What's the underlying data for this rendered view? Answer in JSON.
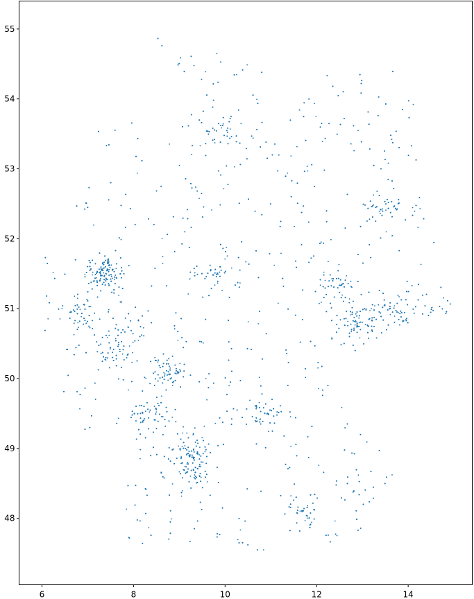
{
  "chart_data": {
    "type": "scatter",
    "title": "",
    "xlabel": "",
    "ylabel": "",
    "xlim": [
      5.5,
      15.4
    ],
    "ylim": [
      47.05,
      55.4
    ],
    "x_ticks": [
      "6",
      "8",
      "10",
      "12",
      "14"
    ],
    "y_ticks": [
      "48",
      "49",
      "50",
      "51",
      "52",
      "53",
      "54",
      "55"
    ],
    "grid": false,
    "legend": "none",
    "marker_color": "#1f77b4",
    "marker": "small dot",
    "approx_point_count": 5000,
    "description_of_extent": {
      "x_range": [
        5.9,
        15.0
      ],
      "y_range": [
        47.4,
        55.0
      ]
    },
    "density_clusters": [
      {
        "x": 7.4,
        "y": 51.5,
        "weight": 0.06
      },
      {
        "x": 6.9,
        "y": 50.9,
        "weight": 0.03
      },
      {
        "x": 7.6,
        "y": 50.4,
        "weight": 0.03
      },
      {
        "x": 8.7,
        "y": 50.1,
        "weight": 0.03
      },
      {
        "x": 8.4,
        "y": 49.5,
        "weight": 0.03
      },
      {
        "x": 9.2,
        "y": 49.0,
        "weight": 0.03
      },
      {
        "x": 9.3,
        "y": 48.7,
        "weight": 0.04
      },
      {
        "x": 11.6,
        "y": 48.1,
        "weight": 0.02
      },
      {
        "x": 10.9,
        "y": 49.5,
        "weight": 0.02
      },
      {
        "x": 9.9,
        "y": 53.6,
        "weight": 0.02
      },
      {
        "x": 13.4,
        "y": 52.5,
        "weight": 0.02
      },
      {
        "x": 12.9,
        "y": 50.8,
        "weight": 0.04
      },
      {
        "x": 13.7,
        "y": 51.0,
        "weight": 0.03
      },
      {
        "x": 12.4,
        "y": 51.3,
        "weight": 0.02
      },
      {
        "x": 14.6,
        "y": 51.0,
        "weight": 0.01
      },
      {
        "x": 8.0,
        "y": 50.7,
        "weight": 0.01
      },
      {
        "x": 9.7,
        "y": 51.5,
        "weight": 0.02
      }
    ]
  }
}
